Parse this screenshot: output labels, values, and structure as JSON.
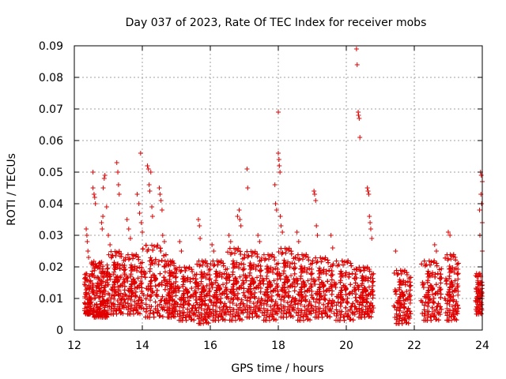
{
  "chart_data": {
    "type": "scatter",
    "title": "Day 037 of 2023, Rate Of TEC Index for receiver mobs",
    "xlabel": "GPS time / hours",
    "ylabel": "ROTI / TECUs",
    "xlim": [
      12,
      24
    ],
    "ylim": [
      0,
      0.09
    ],
    "xticks": [
      "12",
      "14",
      "16",
      "18",
      "20",
      "22",
      "24"
    ],
    "yticks": [
      "0",
      "0.01",
      "0.02",
      "0.03",
      "0.04",
      "0.05",
      "0.06",
      "0.07",
      "0.08",
      "0.09"
    ],
    "grid": true,
    "marker": "+",
    "color": "#e00000",
    "series": [
      {
        "name": "ROTI",
        "points": [
          [
            12.35,
            0.032
          ],
          [
            12.37,
            0.03
          ],
          [
            12.38,
            0.028
          ],
          [
            12.4,
            0.025
          ],
          [
            12.42,
            0.023
          ],
          [
            12.55,
            0.05
          ],
          [
            12.55,
            0.045
          ],
          [
            12.58,
            0.043
          ],
          [
            12.6,
            0.042
          ],
          [
            12.62,
            0.04
          ],
          [
            12.8,
            0.034
          ],
          [
            12.82,
            0.032
          ],
          [
            12.84,
            0.036
          ],
          [
            12.85,
            0.045
          ],
          [
            12.88,
            0.048
          ],
          [
            12.9,
            0.049
          ],
          [
            12.95,
            0.039
          ],
          [
            13.0,
            0.03
          ],
          [
            13.05,
            0.027
          ],
          [
            13.25,
            0.053
          ],
          [
            13.28,
            0.05
          ],
          [
            13.3,
            0.046
          ],
          [
            13.32,
            0.043
          ],
          [
            13.55,
            0.035
          ],
          [
            13.6,
            0.032
          ],
          [
            13.65,
            0.029
          ],
          [
            13.85,
            0.043
          ],
          [
            13.9,
            0.04
          ],
          [
            13.92,
            0.037
          ],
          [
            13.95,
            0.056
          ],
          [
            13.97,
            0.034
          ],
          [
            14.0,
            0.031
          ],
          [
            14.15,
            0.052
          ],
          [
            14.18,
            0.051
          ],
          [
            14.2,
            0.046
          ],
          [
            14.22,
            0.044
          ],
          [
            14.25,
            0.05
          ],
          [
            14.28,
            0.039
          ],
          [
            14.3,
            0.036
          ],
          [
            14.5,
            0.045
          ],
          [
            14.52,
            0.043
          ],
          [
            14.55,
            0.041
          ],
          [
            14.58,
            0.038
          ],
          [
            14.6,
            0.03
          ],
          [
            14.65,
            0.028
          ],
          [
            15.1,
            0.028
          ],
          [
            15.15,
            0.025
          ],
          [
            15.65,
            0.035
          ],
          [
            15.68,
            0.033
          ],
          [
            15.7,
            0.029
          ],
          [
            16.05,
            0.027
          ],
          [
            16.1,
            0.025
          ],
          [
            16.55,
            0.03
          ],
          [
            16.6,
            0.028
          ],
          [
            16.8,
            0.036
          ],
          [
            16.85,
            0.038
          ],
          [
            16.87,
            0.035
          ],
          [
            16.9,
            0.033
          ],
          [
            17.08,
            0.051
          ],
          [
            17.1,
            0.045
          ],
          [
            17.4,
            0.03
          ],
          [
            17.45,
            0.028
          ],
          [
            17.9,
            0.046
          ],
          [
            17.92,
            0.04
          ],
          [
            17.95,
            0.038
          ],
          [
            18.0,
            0.069
          ],
          [
            18.0,
            0.056
          ],
          [
            18.02,
            0.054
          ],
          [
            18.03,
            0.052
          ],
          [
            18.05,
            0.05
          ],
          [
            18.06,
            0.036
          ],
          [
            18.08,
            0.033
          ],
          [
            18.12,
            0.031
          ],
          [
            18.55,
            0.031
          ],
          [
            18.6,
            0.028
          ],
          [
            19.05,
            0.044
          ],
          [
            19.07,
            0.043
          ],
          [
            19.1,
            0.041
          ],
          [
            19.12,
            0.033
          ],
          [
            19.15,
            0.03
          ],
          [
            19.55,
            0.03
          ],
          [
            19.6,
            0.026
          ],
          [
            20.3,
            0.089
          ],
          [
            20.32,
            0.084
          ],
          [
            20.35,
            0.069
          ],
          [
            20.36,
            0.068
          ],
          [
            20.38,
            0.067
          ],
          [
            20.4,
            0.061
          ],
          [
            20.62,
            0.045
          ],
          [
            20.64,
            0.044
          ],
          [
            20.66,
            0.043
          ],
          [
            20.68,
            0.036
          ],
          [
            20.7,
            0.034
          ],
          [
            20.72,
            0.032
          ],
          [
            20.75,
            0.029
          ],
          [
            21.45,
            0.025
          ],
          [
            22.6,
            0.027
          ],
          [
            22.65,
            0.025
          ],
          [
            23.0,
            0.031
          ],
          [
            23.05,
            0.03
          ],
          [
            23.95,
            0.05
          ],
          [
            23.97,
            0.049
          ],
          [
            24.0,
            0.047
          ],
          [
            23.96,
            0.043
          ],
          [
            23.98,
            0.04
          ],
          [
            23.92,
            0.038
          ],
          [
            24.0,
            0.034
          ],
          [
            23.93,
            0.03
          ],
          [
            24.0,
            0.025
          ]
        ],
        "bands": [
          {
            "x": [
              12.3,
              12.5
            ],
            "y": [
              0.005,
              0.018
            ]
          },
          {
            "x": [
              12.5,
              13.0
            ],
            "y": [
              0.004,
              0.022
            ]
          },
          {
            "x": [
              13.0,
              13.5
            ],
            "y": [
              0.005,
              0.025
            ]
          },
          {
            "x": [
              13.5,
              14.0
            ],
            "y": [
              0.005,
              0.024
            ]
          },
          {
            "x": [
              14.0,
              14.7
            ],
            "y": [
              0.004,
              0.027
            ]
          },
          {
            "x": [
              14.7,
              15.0
            ],
            "y": [
              0.004,
              0.022
            ]
          },
          {
            "x": [
              15.0,
              15.6
            ],
            "y": [
              0.003,
              0.02
            ]
          },
          {
            "x": [
              15.6,
              16.0
            ],
            "y": [
              0.002,
              0.022
            ]
          },
          {
            "x": [
              16.0,
              16.5
            ],
            "y": [
              0.003,
              0.022
            ]
          },
          {
            "x": [
              16.5,
              17.0
            ],
            "y": [
              0.003,
              0.026
            ]
          },
          {
            "x": [
              17.0,
              17.5
            ],
            "y": [
              0.004,
              0.025
            ]
          },
          {
            "x": [
              17.5,
              18.0
            ],
            "y": [
              0.003,
              0.024
            ]
          },
          {
            "x": [
              18.0,
              18.5
            ],
            "y": [
              0.004,
              0.026
            ]
          },
          {
            "x": [
              18.5,
              19.0
            ],
            "y": [
              0.003,
              0.024
            ]
          },
          {
            "x": [
              19.0,
              19.6
            ],
            "y": [
              0.004,
              0.023
            ]
          },
          {
            "x": [
              19.6,
              20.3
            ],
            "y": [
              0.003,
              0.022
            ]
          },
          {
            "x": [
              20.3,
              20.8
            ],
            "y": [
              0.004,
              0.02
            ]
          },
          {
            "x": [
              21.4,
              21.9
            ],
            "y": [
              0.002,
              0.019
            ]
          },
          {
            "x": [
              22.2,
              22.8
            ],
            "y": [
              0.003,
              0.022
            ]
          },
          {
            "x": [
              22.9,
              23.3
            ],
            "y": [
              0.003,
              0.024
            ]
          },
          {
            "x": [
              23.8,
              24.0
            ],
            "y": [
              0.005,
              0.018
            ]
          }
        ]
      }
    ]
  }
}
